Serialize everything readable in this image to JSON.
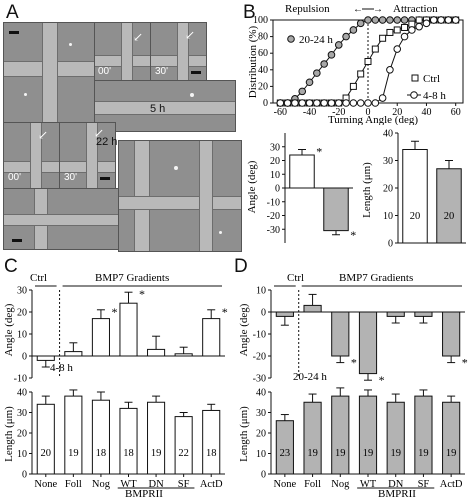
{
  "panels": {
    "a": "A",
    "b": "B",
    "c": "C",
    "d": "D"
  },
  "panel_a": {
    "time_5h": "5 h",
    "time_22h": "22 h",
    "t00": "00'",
    "t30": "30'"
  },
  "chart_data": [
    {
      "type": "line",
      "panel": "B-top",
      "xlabel": "Turning Angle (deg)",
      "ylabel": "Distribution (%)",
      "xlim": [
        -65,
        65
      ],
      "ylim": [
        0,
        100
      ],
      "xticks": [
        "-60",
        "-40",
        "-20",
        "0",
        "20",
        "40",
        "60"
      ],
      "yticks": [
        "0",
        "20",
        "40",
        "60",
        "80",
        "100"
      ],
      "annotations": {
        "repulsion": "Repulsion",
        "attraction": "Attraction"
      },
      "series": [
        {
          "name": "20-24 h",
          "marker": "filled-circle",
          "x": [
            -60,
            -55,
            -50,
            -45,
            -40,
            -35,
            -30,
            -25,
            -20,
            -15,
            -10,
            -5,
            0,
            5,
            10,
            15,
            20,
            25,
            30,
            35,
            40,
            45,
            50,
            55,
            60
          ],
          "y": [
            0,
            0,
            5,
            14,
            25,
            36,
            47,
            58,
            70,
            80,
            88,
            96,
            100,
            100,
            100,
            100,
            100,
            100,
            100,
            100,
            100,
            100,
            100,
            100,
            100
          ]
        },
        {
          "name": "Ctrl",
          "marker": "square",
          "x": [
            -60,
            -55,
            -50,
            -45,
            -40,
            -35,
            -30,
            -25,
            -20,
            -15,
            -10,
            -5,
            0,
            5,
            10,
            15,
            20,
            25,
            30,
            35,
            40,
            45,
            50,
            55,
            60
          ],
          "y": [
            0,
            0,
            0,
            0,
            0,
            0,
            0,
            0,
            0,
            6,
            20,
            35,
            50,
            65,
            78,
            85,
            88,
            91,
            95,
            100,
            100,
            100,
            100,
            100,
            100
          ]
        },
        {
          "name": "4-8 h",
          "marker": "open-circle",
          "x": [
            -60,
            -55,
            -50,
            -45,
            -40,
            -35,
            -30,
            -25,
            -20,
            -15,
            -10,
            -5,
            0,
            5,
            10,
            15,
            20,
            25,
            30,
            35,
            40,
            45,
            50,
            55,
            60
          ],
          "y": [
            0,
            0,
            0,
            0,
            0,
            0,
            0,
            0,
            0,
            0,
            0,
            0,
            0,
            0,
            6,
            40,
            65,
            80,
            88,
            92,
            96,
            100,
            100,
            100,
            100
          ]
        }
      ],
      "legend": "right"
    },
    {
      "type": "bar",
      "panel": "B-angle",
      "ylabel": "Angle (deg)",
      "ylim": [
        -40,
        40
      ],
      "yticks": [
        "-30",
        "-20",
        "-10",
        "0",
        "10",
        "20",
        "30"
      ],
      "values": [
        24,
        -31
      ],
      "errors": [
        4,
        3
      ],
      "colors": [
        "#ffffff",
        "#b3b3b3"
      ],
      "significance": [
        "*",
        "*"
      ]
    },
    {
      "type": "bar",
      "panel": "B-length",
      "ylabel": "Length (μm)",
      "ylim": [
        0,
        40
      ],
      "yticks": [
        "0",
        "10",
        "20",
        "30",
        "40"
      ],
      "values": [
        34,
        27
      ],
      "errors": [
        3,
        3
      ],
      "n_labels": [
        "20",
        "20"
      ],
      "colors": [
        "#ffffff",
        "#b3b3b3"
      ]
    },
    {
      "type": "bar",
      "panel": "C-angle",
      "ylabel": "Angle (deg)",
      "ylim": [
        -10,
        30
      ],
      "yticks": [
        "-10",
        "0",
        "10",
        "20",
        "30"
      ],
      "title_ctrl": "Ctrl",
      "title_grad": "BMP7 Gradients",
      "note": "4-8 h",
      "categories": [
        "None",
        "Foll",
        "Nog",
        "WT",
        "DN",
        "SF",
        "ActD"
      ],
      "values": [
        -2,
        2,
        17,
        24,
        3,
        1,
        17
      ],
      "errors": [
        3,
        4,
        4,
        5,
        6,
        3,
        4
      ],
      "significance": [
        "",
        "",
        "*",
        "*",
        "",
        "",
        "*"
      ],
      "color": "#ffffff"
    },
    {
      "type": "bar",
      "panel": "C-length",
      "ylabel": "Length (μm)",
      "ylim": [
        0,
        40
      ],
      "yticks": [
        "0",
        "10",
        "20",
        "30",
        "40"
      ],
      "categories": [
        "None",
        "Foll",
        "Nog",
        "WT",
        "DN",
        "SF",
        "ActD"
      ],
      "values": [
        34,
        38,
        36,
        32,
        35,
        28,
        31
      ],
      "errors": [
        4,
        3,
        4,
        3,
        3,
        2,
        3
      ],
      "n_labels": [
        "20",
        "19",
        "18",
        "18",
        "19",
        "22",
        "18"
      ],
      "group_label": "BMPRII",
      "color": "#ffffff"
    },
    {
      "type": "bar",
      "panel": "D-angle",
      "ylabel": "Angle (deg)",
      "ylim": [
        -30,
        10
      ],
      "yticks": [
        "-30",
        "-20",
        "-10",
        "0",
        "10"
      ],
      "title_ctrl": "Ctrl",
      "title_grad": "BMP7 Gradients",
      "note": "20-24 h",
      "categories": [
        "None",
        "Foll",
        "Nog",
        "WT",
        "DN",
        "SF",
        "ActD"
      ],
      "values": [
        -2,
        3,
        -20,
        -28,
        -2,
        -2,
        -20
      ],
      "errors": [
        4,
        5,
        3,
        3,
        3,
        3,
        3
      ],
      "significance": [
        "",
        "",
        "*",
        "*",
        "",
        "",
        "*"
      ],
      "color": "#b3b3b3"
    },
    {
      "type": "bar",
      "panel": "D-length",
      "ylabel": "Length (μm)",
      "ylim": [
        0,
        40
      ],
      "yticks": [
        "0",
        "10",
        "20",
        "30",
        "40"
      ],
      "categories": [
        "None",
        "Foll",
        "Nog",
        "WT",
        "DN",
        "SF",
        "ActD"
      ],
      "values": [
        26,
        35,
        38,
        38,
        35,
        38,
        35
      ],
      "errors": [
        3,
        4,
        4,
        3,
        4,
        3,
        3
      ],
      "n_labels": [
        "23",
        "19",
        "19",
        "19",
        "19",
        "19",
        "19"
      ],
      "group_label": "BMPRII",
      "color": "#b3b3b3"
    }
  ]
}
